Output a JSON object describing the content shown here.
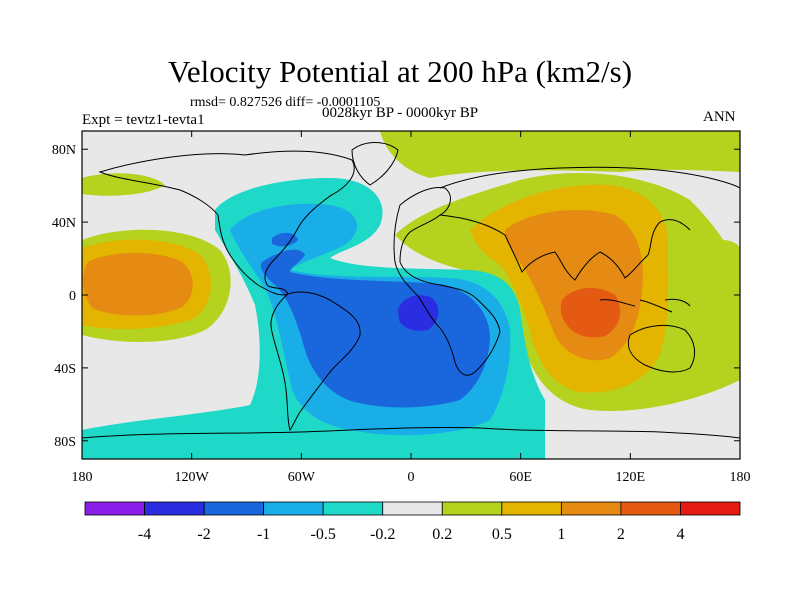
{
  "header": {
    "title": "Velocity Potential at 200 hPa (km2/s)",
    "stats": "rmsd= 0.827526 diff= -0.0001105",
    "experiment": "Expt = tevtz1-tevta1",
    "period": "0028kyr BP - 0000kyr BP",
    "season": "ANN"
  },
  "map": {
    "projection": "cylindrical equidistant",
    "lon_range": [
      -180,
      180
    ],
    "lat_range": [
      -90,
      90
    ],
    "lon_ticks": [
      {
        "value": -180,
        "label": "180"
      },
      {
        "value": -120,
        "label": "120W"
      },
      {
        "value": -60,
        "label": "60W"
      },
      {
        "value": 0,
        "label": "0"
      },
      {
        "value": 60,
        "label": "60E"
      },
      {
        "value": 120,
        "label": "120E"
      },
      {
        "value": 180,
        "label": "180"
      }
    ],
    "lat_ticks": [
      {
        "value": 80,
        "label": "80N"
      },
      {
        "value": 40,
        "label": "40N"
      },
      {
        "value": 0,
        "label": "0"
      },
      {
        "value": -40,
        "label": "40S"
      },
      {
        "value": -80,
        "label": "80S"
      }
    ]
  },
  "colorbar": {
    "colors": [
      "#8a1ee8",
      "#2a2ee0",
      "#1a66dd",
      "#1aaee8",
      "#1ed9c8",
      "#e8e8e8",
      "#b4d21e",
      "#e3b400",
      "#e58a12",
      "#e55a12",
      "#e51a12"
    ],
    "labels": [
      "-4",
      "-2",
      "-1",
      "-0.5",
      "-0.2",
      "0.2",
      "0.5",
      "1",
      "2",
      "4"
    ]
  }
}
